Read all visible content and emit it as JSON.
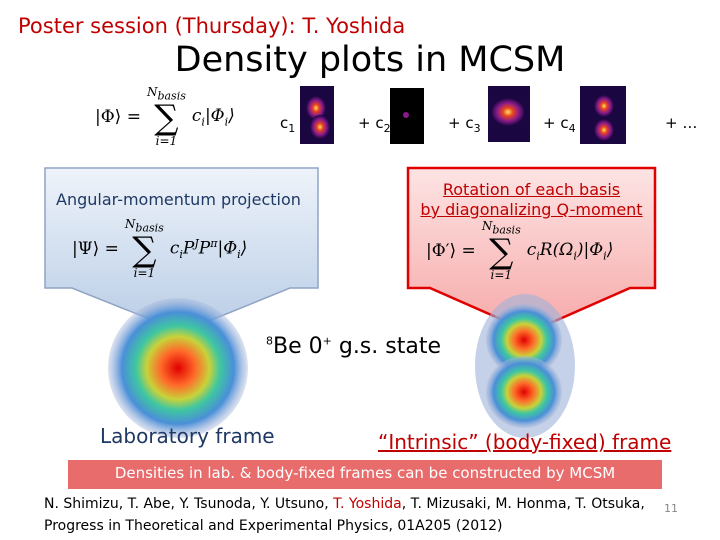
{
  "header": {
    "text": "Poster session (Thursday): T. Yoshida"
  },
  "title": "Density plots in MCSM",
  "expansion": {
    "lhs": "|Φ⟩ =",
    "upper": "N",
    "upper_sub": "basis",
    "lower": "i=1",
    "body": [
      {
        "t": "c"
      },
      {
        "sub": "i"
      },
      {
        "t": "|Φ"
      },
      {
        "sub": "i"
      },
      {
        "t": "⟩"
      }
    ],
    "terms": [
      {
        "text": "c",
        "sub": "1"
      },
      {
        "text": "+ c",
        "sub": "2"
      },
      {
        "text": "+ c",
        "sub": "3"
      },
      {
        "text": "+ c",
        "sub": "4"
      },
      {
        "text": "+ …"
      }
    ]
  },
  "left_box": {
    "label": "Angular-momentum projection",
    "lhs": "|Ψ⟩ =",
    "upper": "N",
    "upper_sub": "basis",
    "lower": "i=1",
    "body": [
      {
        "t": "c"
      },
      {
        "sub": "i"
      },
      {
        "t": "P"
      },
      {
        "sup": "J"
      },
      {
        "t": "P"
      },
      {
        "sup": "π"
      },
      {
        "t": "|Φ"
      },
      {
        "sub": "i"
      },
      {
        "t": "⟩"
      }
    ]
  },
  "right_box": {
    "label_lines": [
      "Rotation of each basis",
      "by diagonalizing Q-moment"
    ],
    "lhs": "|Φ′⟩ =",
    "upper": "N",
    "upper_sub": "basis",
    "lower": "i=1",
    "body": [
      {
        "t": "c"
      },
      {
        "sub": "i"
      },
      {
        "t": "R(Ω"
      },
      {
        "sub": "i"
      },
      {
        "t": ")|Φ"
      },
      {
        "sub": "i"
      },
      {
        "t": "⟩"
      }
    ]
  },
  "state": {
    "mass": "8",
    "element": "Be",
    "spin": "0",
    "parity": "+",
    "rest": " g.s. state"
  },
  "lab_frame": "Laboratory frame",
  "intrinsic_frame": "“Intrinsic” (body-fixed) frame",
  "banner": "Densities in lab. & body-fixed frames can be constructed by MCSM",
  "citation": {
    "authors_before": "N. Shimizu, T. Abe, Y. Tsunoda, Y. Utsuno, ",
    "highlight": "T. Yoshida",
    "authors_after": ", T. Mizusaki, M. Honma, T. Otsuka,",
    "journal": "Progress in Theoretical and Experimental Physics,  01A205 (2012)"
  },
  "page_number": "11"
}
